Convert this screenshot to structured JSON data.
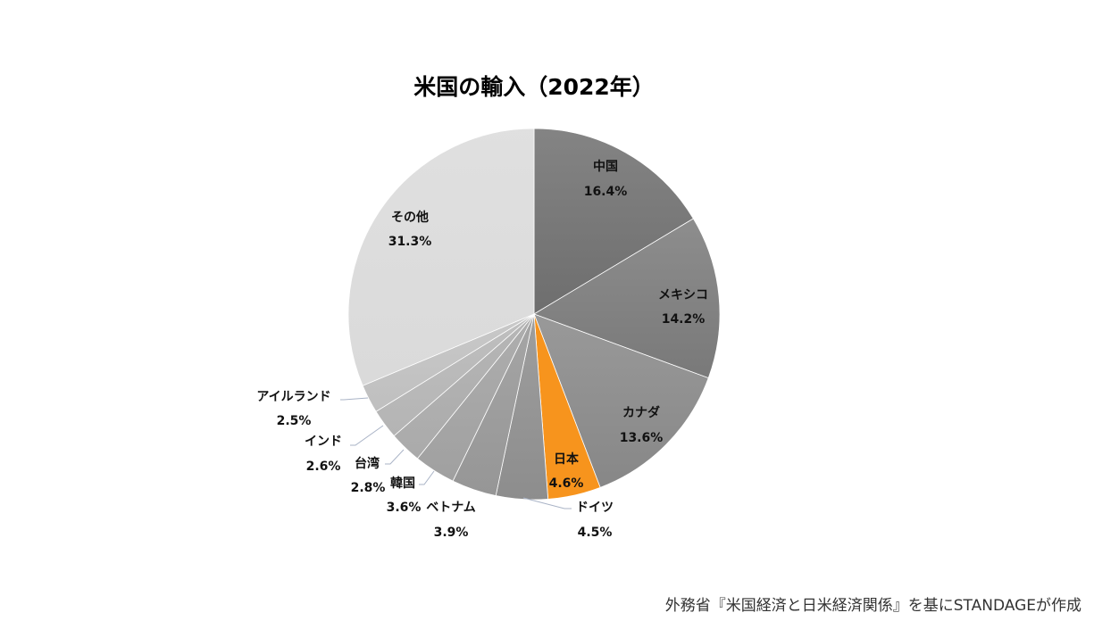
{
  "chart_data": {
    "type": "pie",
    "title": "米国の輸入（2022年）",
    "unit": "%",
    "start_angle": "12 o'clock",
    "direction": "clockwise",
    "slices": [
      {
        "label": "中国",
        "value": 16.4,
        "value_label": "16.4%",
        "color": "#6e6e6e"
      },
      {
        "label": "メキシコ",
        "value": 14.2,
        "value_label": "14.2%",
        "color": "#797979"
      },
      {
        "label": "カナダ",
        "value": 13.6,
        "value_label": "13.6%",
        "color": "#878787"
      },
      {
        "label": "日本",
        "value": 4.6,
        "value_label": "4.6%",
        "color": "#f7941d"
      },
      {
        "label": "ドイツ",
        "value": 4.5,
        "value_label": "4.5%",
        "color": "#8d8d8d"
      },
      {
        "label": "ベトナム",
        "value": 3.9,
        "value_label": "3.9%",
        "color": "#969696"
      },
      {
        "label": "韓国",
        "value": 3.6,
        "value_label": "3.6%",
        "color": "#a0a0a0"
      },
      {
        "label": "台湾",
        "value": 2.8,
        "value_label": "2.8%",
        "color": "#aaaaaa"
      },
      {
        "label": "インド",
        "value": 2.6,
        "value_label": "2.6%",
        "color": "#b4b4b4"
      },
      {
        "label": "アイルランド",
        "value": 2.5,
        "value_label": "2.5%",
        "color": "#bfbfbf"
      },
      {
        "label": "その他",
        "value": 31.3,
        "value_label": "31.3%",
        "color": "#dadada"
      }
    ]
  },
  "source": "外務省『米国経済と日米経済関係』を基にSTANDAGEが作成"
}
